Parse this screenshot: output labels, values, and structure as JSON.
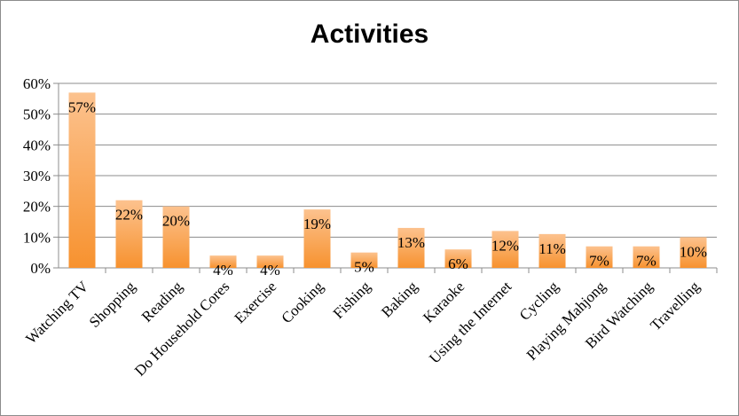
{
  "chart_data": {
    "type": "bar",
    "title": "Activities",
    "categories": [
      "Watching TV",
      "Shopping",
      "Reading",
      "Do Household Cores",
      "Exercise",
      "Cooking",
      "Fishing",
      "Baking",
      "Karaoke",
      "Using the Internet",
      "Cycling",
      "Playing Mahjong",
      "Bird Watching",
      "Travelling"
    ],
    "values": [
      57,
      22,
      20,
      4,
      4,
      19,
      5,
      13,
      6,
      12,
      11,
      7,
      7,
      10
    ],
    "data_labels": [
      "57%",
      "22%",
      "20%",
      "4%",
      "4%",
      "19%",
      "5%",
      "13%",
      "6%",
      "12%",
      "11%",
      "7%",
      "7%",
      "10%"
    ],
    "yticks": [
      "0%",
      "10%",
      "20%",
      "30%",
      "40%",
      "50%",
      "60%"
    ],
    "ylim": [
      0,
      60
    ],
    "grid": true,
    "legend": "none",
    "colors": {
      "bar_light": "#fcc28e",
      "bar_dark": "#f7922f",
      "grid": "#8c8c8c"
    }
  }
}
